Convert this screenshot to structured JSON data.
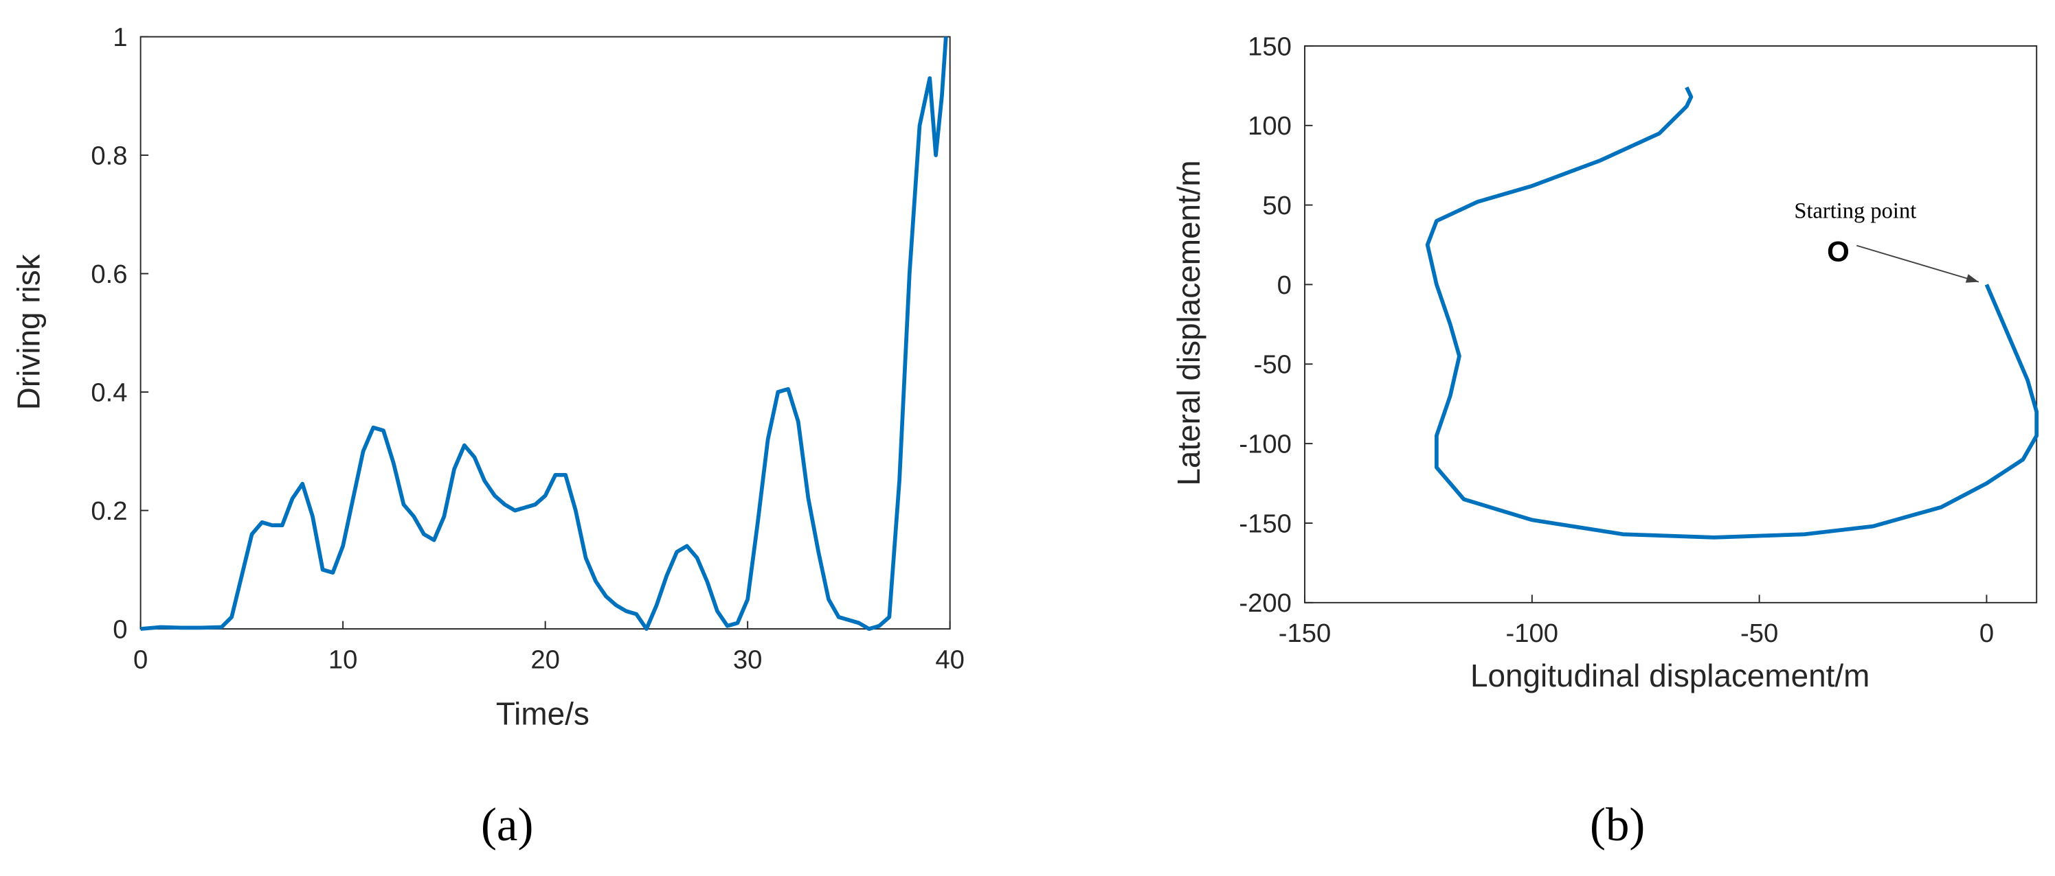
{
  "chart_data": [
    {
      "type": "line",
      "caption": "(a)",
      "xlabel": "Time/s",
      "ylabel": "Driving risk",
      "color": "#0072bd",
      "x": [
        0,
        1,
        2,
        3,
        4,
        4.5,
        5,
        5.5,
        6,
        6.5,
        7,
        7.5,
        8,
        8.5,
        9,
        9.5,
        10,
        10.5,
        11,
        11.5,
        12,
        12.5,
        13,
        13.5,
        14,
        14.5,
        15,
        15.5,
        16,
        16.5,
        17,
        17.5,
        18,
        18.5,
        19,
        19.5,
        20,
        20.5,
        21,
        21.5,
        22,
        22.5,
        23,
        23.5,
        24,
        24.5,
        25,
        25.5,
        26,
        26.5,
        27,
        27.5,
        28,
        28.5,
        29,
        29.5,
        30,
        30.5,
        31,
        31.5,
        32,
        32.5,
        33,
        33.5,
        34,
        34.5,
        35,
        35.5,
        36,
        36.5,
        37,
        37.5,
        38,
        38.5,
        39,
        39.3,
        39.6,
        39.8
      ],
      "values": [
        0,
        0.003,
        0.002,
        0.002,
        0.003,
        0.02,
        0.09,
        0.16,
        0.18,
        0.175,
        0.175,
        0.22,
        0.245,
        0.19,
        0.1,
        0.095,
        0.14,
        0.22,
        0.3,
        0.34,
        0.335,
        0.28,
        0.21,
        0.19,
        0.16,
        0.15,
        0.19,
        0.27,
        0.31,
        0.29,
        0.25,
        0.225,
        0.21,
        0.2,
        0.205,
        0.21,
        0.225,
        0.26,
        0.26,
        0.2,
        0.12,
        0.08,
        0.055,
        0.04,
        0.03,
        0.025,
        0,
        0.04,
        0.09,
        0.13,
        0.14,
        0.12,
        0.08,
        0.03,
        0.005,
        0.01,
        0.05,
        0.18,
        0.32,
        0.4,
        0.405,
        0.35,
        0.22,
        0.13,
        0.05,
        0.02,
        0.015,
        0.01,
        0,
        0.005,
        0.02,
        0.25,
        0.6,
        0.85,
        0.93,
        0.8,
        0.9,
        1
      ],
      "xlim": [
        0,
        40
      ],
      "xticks": [
        0,
        10,
        20,
        30,
        40
      ],
      "ylim": [
        0,
        1
      ],
      "yticks": [
        0,
        0.2,
        0.4,
        0.6,
        0.8,
        1
      ]
    },
    {
      "type": "line",
      "caption": "(b)",
      "xlabel": "Longitudinal displacement/m",
      "ylabel": "Lateral displacement/m",
      "color": "#0072bd",
      "annotation": "Starting point",
      "marker_label": "O",
      "x": [
        0,
        3,
        6,
        9,
        11,
        11,
        8,
        0,
        -10,
        -25,
        -40,
        -60,
        -80,
        -100,
        -115,
        -121,
        -121,
        -118,
        -116,
        -118,
        -121,
        -123,
        -121,
        -112,
        -100,
        -85,
        -72,
        -66,
        -65,
        -66
      ],
      "values": [
        0,
        -20,
        -40,
        -60,
        -80,
        -95,
        -110,
        -125,
        -140,
        -152,
        -157,
        -159,
        -157,
        -148,
        -135,
        -115,
        -95,
        -70,
        -45,
        -25,
        0,
        25,
        40,
        52,
        62,
        78,
        95,
        112,
        118,
        124
      ],
      "xlim": [
        -150,
        11
      ],
      "xticks": [
        -150,
        -100,
        -50,
        0
      ],
      "ylim": [
        -200,
        150
      ],
      "yticks": [
        -200,
        -150,
        -100,
        -50,
        0,
        50,
        100,
        150
      ]
    }
  ]
}
